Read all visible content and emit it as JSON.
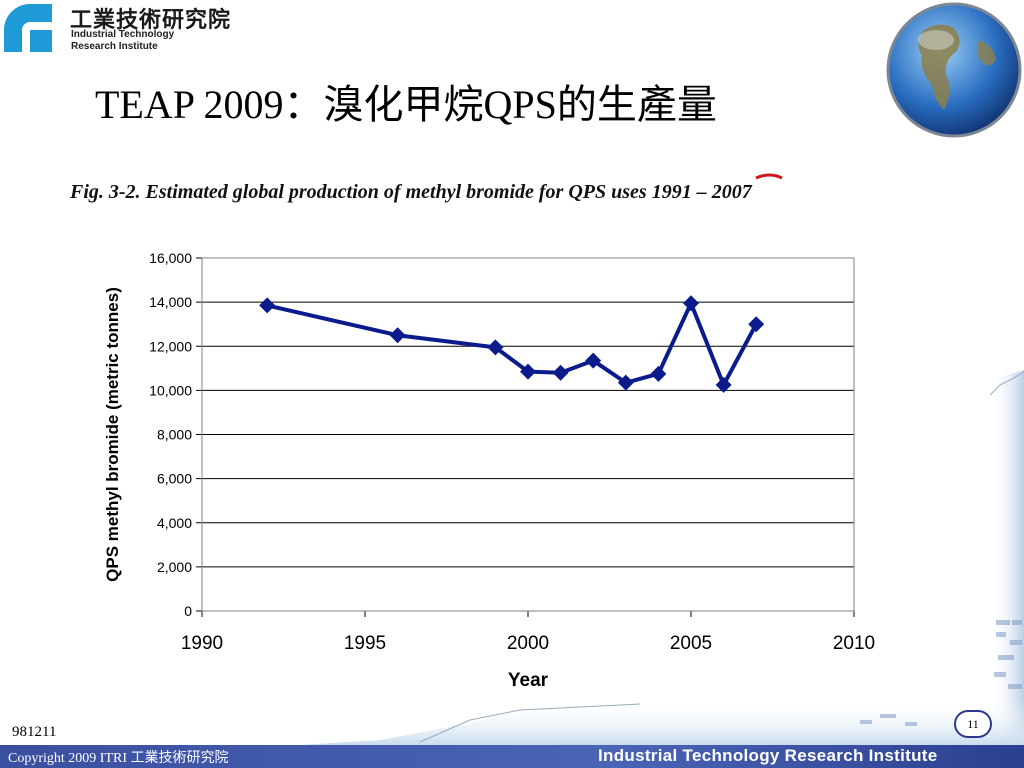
{
  "header": {
    "logo_zh": "工業技術研究院",
    "logo_en_line1": "Industrial Technology",
    "logo_en_line2": "Research Institute"
  },
  "slide": {
    "title": "TEAP 2009：溴化甲烷QPS的生產量",
    "figure_caption": "Fig. 3-2. Estimated global production of methyl bromide for QPS uses 1991 – 2007"
  },
  "footer": {
    "date": "981211",
    "copyright": "Copyright 2009 ITRI 工業技術研究院",
    "institute": "Industrial Technology Research Institute",
    "page_number": "11"
  },
  "colors": {
    "series": "#0b1b8c",
    "footer_band": "#3b4fa0",
    "accent_red": "#d0141e"
  },
  "chart_data": {
    "type": "line",
    "xlabel": "Year",
    "ylabel": "QPS methyl bromide (metric tonnes)",
    "xlim": [
      1990,
      2010
    ],
    "ylim": [
      0,
      16000
    ],
    "x_ticks": [
      1990,
      1995,
      2000,
      2005,
      2010
    ],
    "y_ticks": [
      0,
      2000,
      4000,
      6000,
      8000,
      10000,
      12000,
      14000,
      16000
    ],
    "y_tick_labels": [
      "0",
      "2,000",
      "4,000",
      "6,000",
      "8,000",
      "10,000",
      "12,000",
      "14,000",
      "16,000"
    ],
    "grid": "horizontal",
    "marker": "diamond",
    "series": [
      {
        "x": [
          1992,
          1996,
          1999,
          2000,
          2001,
          2002,
          2003,
          2004,
          2005,
          2006,
          2007
        ],
        "y": [
          13850,
          12500,
          11950,
          10850,
          10800,
          11350,
          10350,
          10750,
          13950,
          10250,
          13000
        ]
      }
    ]
  }
}
